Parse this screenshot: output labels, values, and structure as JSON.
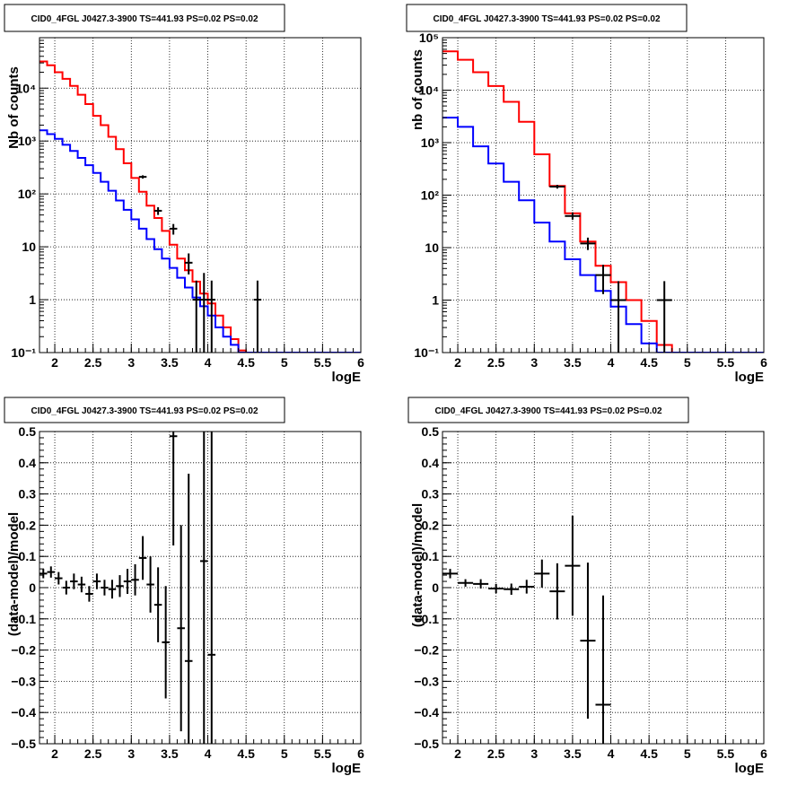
{
  "colors": {
    "data": "#000000",
    "total_model": "#ff0000",
    "source_model": "#0000ff",
    "grid": "#000000"
  },
  "chart_data": [
    {
      "type": "line",
      "title": "CID0_4FGL J0427.3-3900 TS=441.93 PS=0.02 PS=0.02",
      "xlabel": "logE",
      "ylabel": "Nb of counts",
      "xlim": [
        1.8,
        6.0
      ],
      "ylim": [
        0.1,
        90000
      ],
      "yscale": "log",
      "grid": true,
      "x_ticks": [
        2,
        2.5,
        3,
        3.5,
        4,
        4.5,
        5,
        5.5,
        6
      ],
      "x_tick_labels": [
        "2",
        "2.5",
        "3",
        "3.5",
        "4",
        "4.5",
        "5",
        "5.5",
        "6"
      ],
      "y_ticks": [
        0.1,
        1,
        10,
        100,
        1000,
        10000
      ],
      "y_tick_labels": [
        "10⁻¹",
        "1",
        "10",
        "10²",
        "10³",
        "10⁴"
      ],
      "bin_edges": [
        1.8,
        1.9,
        2.0,
        2.1,
        2.2,
        2.3,
        2.4,
        2.5,
        2.6,
        2.7,
        2.8,
        2.9,
        3.0,
        3.1,
        3.2,
        3.3,
        3.4,
        3.5,
        3.6,
        3.7,
        3.8,
        3.9,
        4.0,
        4.1,
        4.2,
        4.3,
        4.4,
        4.5,
        4.6,
        4.7,
        6.0
      ],
      "series": [
        {
          "role": "total_model",
          "values": [
            32000,
            27000,
            20000,
            15000,
            11000,
            7500,
            5000,
            3000,
            2000,
            1200,
            700,
            380,
            200,
            110,
            60,
            35,
            20,
            11,
            6,
            3.6,
            2.2,
            1.3,
            0.85,
            0.5,
            0.3,
            0.18,
            0.11,
            0.1,
            0.1,
            0.1
          ]
        },
        {
          "role": "source_model",
          "values": [
            1600,
            1350,
            1100,
            850,
            650,
            480,
            350,
            250,
            170,
            115,
            75,
            50,
            33,
            22,
            14,
            9,
            6,
            4,
            2.6,
            1.7,
            1.1,
            0.75,
            0.5,
            0.3,
            0.2,
            0.14,
            0.1,
            0.1,
            0.1,
            0.1
          ]
        },
        {
          "role": "data",
          "points": [
            {
              "x": 3.15,
              "y": 210,
              "ylo": 195,
              "yhi": 225
            },
            {
              "x": 3.35,
              "y": 48,
              "ylo": 40,
              "yhi": 56
            },
            {
              "x": 3.55,
              "y": 22,
              "ylo": 17,
              "yhi": 27
            },
            {
              "x": 3.75,
              "y": 5,
              "ylo": 3,
              "yhi": 7.5
            },
            {
              "x": 3.85,
              "y": 1,
              "ylo": 0.1,
              "yhi": 2.3
            },
            {
              "x": 3.95,
              "y": 1,
              "ylo": 0.1,
              "yhi": 3.2
            },
            {
              "x": 4.05,
              "y": 1,
              "ylo": 0.1,
              "yhi": 2.3
            },
            {
              "x": 4.65,
              "y": 1,
              "ylo": 0.1,
              "yhi": 2.3
            }
          ]
        }
      ]
    },
    {
      "type": "line",
      "title": "CID0_4FGL J0427.3-3900 TS=441.93 PS=0.02 PS=0.02",
      "xlabel": "logE",
      "ylabel": "nb of counts",
      "xlim": [
        1.8,
        6.0
      ],
      "ylim": [
        0.1,
        100000
      ],
      "yscale": "log",
      "grid": true,
      "x_ticks": [
        2,
        2.5,
        3,
        3.5,
        4,
        4.5,
        5,
        5.5,
        6
      ],
      "x_tick_labels": [
        "2",
        "2.5",
        "3",
        "3.5",
        "4",
        "4.5",
        "5",
        "5.5",
        "6"
      ],
      "y_ticks": [
        0.1,
        1,
        10,
        100,
        1000,
        10000,
        100000
      ],
      "y_tick_labels": [
        "10⁻¹",
        "1",
        "10",
        "10²",
        "10³",
        "10⁴",
        "10⁵"
      ],
      "bin_edges": [
        1.8,
        2.0,
        2.2,
        2.4,
        2.6,
        2.8,
        3.0,
        3.2,
        3.4,
        3.6,
        3.8,
        4.0,
        4.2,
        4.4,
        4.6,
        4.8,
        6.0
      ],
      "series": [
        {
          "role": "total_model",
          "values": [
            55000,
            38000,
            22000,
            12000,
            6000,
            2500,
            600,
            150,
            45,
            13,
            4.5,
            2.2,
            1.0,
            0.4,
            0.14,
            0.1
          ]
        },
        {
          "role": "source_model",
          "values": [
            3000,
            2000,
            850,
            400,
            180,
            80,
            30,
            13,
            6,
            3,
            1.5,
            0.75,
            0.35,
            0.15,
            0.1,
            0.1
          ]
        },
        {
          "role": "data",
          "points": [
            {
              "x": 3.3,
              "y": 145,
              "ylo": 133,
              "yhi": 157
            },
            {
              "x": 3.5,
              "y": 40,
              "ylo": 34,
              "yhi": 47
            },
            {
              "x": 3.7,
              "y": 12,
              "ylo": 9,
              "yhi": 15.5
            },
            {
              "x": 3.9,
              "y": 3,
              "ylo": 1.3,
              "yhi": 4.7
            },
            {
              "x": 4.1,
              "y": 1,
              "ylo": 0.1,
              "yhi": 2.3
            },
            {
              "x": 4.7,
              "y": 1,
              "ylo": 0.1,
              "yhi": 2.3
            }
          ]
        }
      ]
    },
    {
      "type": "scatter",
      "title": "CID0_4FGL J0427.3-3900 TS=441.93 PS=0.02 PS=0.02",
      "xlabel": "logE",
      "ylabel": "(data-model)/model",
      "xlim": [
        1.8,
        6.0
      ],
      "ylim": [
        -0.5,
        0.5
      ],
      "grid": true,
      "x_ticks": [
        2,
        2.5,
        3,
        3.5,
        4,
        4.5,
        5,
        5.5,
        6
      ],
      "x_tick_labels": [
        "2",
        "2.5",
        "3",
        "3.5",
        "4",
        "4.5",
        "5",
        "5.5",
        "6"
      ],
      "y_ticks": [
        -0.5,
        -0.4,
        -0.3,
        -0.2,
        -0.1,
        0,
        0.1,
        0.2,
        0.3,
        0.4,
        0.5
      ],
      "y_tick_labels": [
        "−0.5",
        "−0.4",
        "−0.3",
        "−0.2",
        "−0.1",
        "0",
        "0.1",
        "0.2",
        "0.3",
        "0.4",
        "0.5"
      ],
      "bin_width": 0.1,
      "points": [
        {
          "x": 1.85,
          "y": 0.045,
          "err": 0.015
        },
        {
          "x": 1.95,
          "y": 0.05,
          "err": 0.018
        },
        {
          "x": 2.05,
          "y": 0.03,
          "err": 0.02
        },
        {
          "x": 2.15,
          "y": 0.0,
          "err": 0.022
        },
        {
          "x": 2.25,
          "y": 0.02,
          "err": 0.025
        },
        {
          "x": 2.35,
          "y": 0.01,
          "err": 0.025
        },
        {
          "x": 2.45,
          "y": -0.02,
          "err": 0.025
        },
        {
          "x": 2.55,
          "y": 0.02,
          "err": 0.025
        },
        {
          "x": 2.65,
          "y": 0.0,
          "err": 0.025
        },
        {
          "x": 2.75,
          "y": -0.005,
          "err": 0.03
        },
        {
          "x": 2.85,
          "y": 0.005,
          "err": 0.035
        },
        {
          "x": 2.95,
          "y": 0.02,
          "err": 0.04
        },
        {
          "x": 3.05,
          "y": 0.025,
          "err": 0.05
        },
        {
          "x": 3.15,
          "y": 0.095,
          "err": 0.07
        },
        {
          "x": 3.25,
          "y": 0.01,
          "err": 0.09
        },
        {
          "x": 3.35,
          "y": -0.055,
          "err": 0.12
        },
        {
          "x": 3.45,
          "y": -0.175,
          "err": 0.18
        },
        {
          "x": 3.55,
          "y": 0.485,
          "err": 0.35
        },
        {
          "x": 3.65,
          "y": -0.13,
          "err": 0.33
        },
        {
          "x": 3.75,
          "y": -0.235,
          "err": 0.6
        },
        {
          "x": 3.95,
          "y": 0.085,
          "err": 0.9
        },
        {
          "x": 4.05,
          "y": -0.215,
          "err": 1.0
        }
      ]
    },
    {
      "type": "scatter",
      "title": "CID0_4FGL J0427.3-3900 TS=441.93 PS=0.02 PS=0.02",
      "xlabel": "logE",
      "ylabel": "(data-model)/model",
      "xlim": [
        1.8,
        6.0
      ],
      "ylim": [
        -0.5,
        0.5
      ],
      "grid": true,
      "x_ticks": [
        2,
        2.5,
        3,
        3.5,
        4,
        4.5,
        5,
        5.5,
        6
      ],
      "x_tick_labels": [
        "2",
        "2.5",
        "3",
        "3.5",
        "4",
        "4.5",
        "5",
        "5.5",
        "6"
      ],
      "y_ticks": [
        -0.5,
        -0.4,
        -0.3,
        -0.2,
        -0.1,
        0,
        0.1,
        0.2,
        0.3,
        0.4,
        0.5
      ],
      "y_tick_labels": [
        "−0.5",
        "−0.4",
        "−0.3",
        "−0.2",
        "−0.1",
        "0",
        "0.1",
        "0.2",
        "0.3",
        "0.4",
        "0.5"
      ],
      "bin_width": 0.2,
      "points": [
        {
          "x": 1.9,
          "y": 0.045,
          "err": 0.015
        },
        {
          "x": 2.1,
          "y": 0.015,
          "err": 0.012
        },
        {
          "x": 2.3,
          "y": 0.012,
          "err": 0.015
        },
        {
          "x": 2.5,
          "y": -0.003,
          "err": 0.015
        },
        {
          "x": 2.7,
          "y": -0.005,
          "err": 0.018
        },
        {
          "x": 2.9,
          "y": 0.003,
          "err": 0.022
        },
        {
          "x": 3.1,
          "y": 0.045,
          "err": 0.045
        },
        {
          "x": 3.3,
          "y": -0.012,
          "err": 0.09
        },
        {
          "x": 3.5,
          "y": 0.07,
          "err": 0.16
        },
        {
          "x": 3.7,
          "y": -0.17,
          "err": 0.25
        },
        {
          "x": 3.9,
          "y": -0.375,
          "err": 0.35
        }
      ]
    }
  ]
}
